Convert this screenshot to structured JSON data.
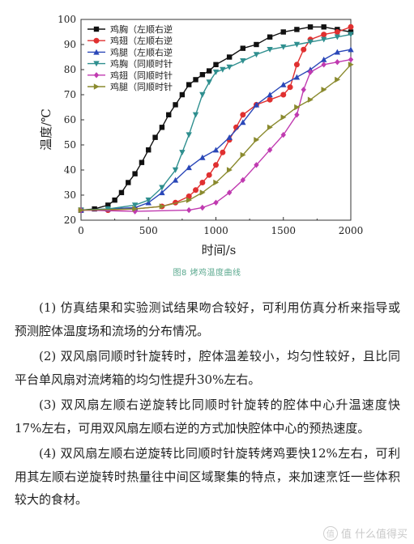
{
  "chart_data": {
    "type": "line",
    "xlabel": "时间/s",
    "ylabel": "温度/℃",
    "xlim": [
      0,
      2000
    ],
    "ylim": [
      20,
      100
    ],
    "xticks": [
      0,
      500,
      1000,
      1500,
      2000
    ],
    "yticks": [
      20,
      30,
      40,
      50,
      60,
      70,
      80,
      90,
      100
    ],
    "legend_position": "top-left",
    "grid": false,
    "series": [
      {
        "name": "鸡胸（左顺右逆",
        "color": "#111111",
        "marker": "square",
        "x": [
          0,
          100,
          200,
          250,
          300,
          350,
          400,
          450,
          500,
          550,
          600,
          650,
          700,
          750,
          800,
          850,
          900,
          950,
          1000,
          1100,
          1200,
          1300,
          1400,
          1500,
          1600,
          1700,
          1800,
          1900,
          2000
        ],
        "y": [
          24,
          24.5,
          26,
          28,
          31,
          35,
          38.5,
          43,
          48,
          53,
          57,
          62,
          66,
          70,
          74,
          76,
          78,
          79.5,
          82,
          85,
          88.5,
          90,
          93,
          95,
          96,
          97,
          97,
          96,
          95
        ]
      },
      {
        "name": "鸡翅（左顺右逆",
        "color": "#e03030",
        "marker": "circle",
        "x": [
          0,
          200,
          400,
          600,
          700,
          800,
          850,
          900,
          950,
          1000,
          1050,
          1100,
          1150,
          1200,
          1300,
          1400,
          1500,
          1550,
          1600,
          1650,
          1700,
          1800,
          1900,
          2000
        ],
        "y": [
          24,
          24,
          24.5,
          25.5,
          27,
          29.5,
          32,
          35,
          38,
          42,
          47,
          52,
          57,
          62,
          66,
          68,
          70,
          73,
          82,
          88,
          92,
          94,
          95,
          97
        ]
      },
      {
        "name": "鸡腿（左顺右逆",
        "color": "#2a47b8",
        "marker": "triangle",
        "x": [
          0,
          200,
          400,
          500,
          600,
          700,
          800,
          900,
          1000,
          1100,
          1200,
          1300,
          1400,
          1500,
          1600,
          1700,
          1800,
          1900,
          2000
        ],
        "y": [
          24,
          24.5,
          25,
          27,
          31,
          36,
          41,
          45,
          48,
          53,
          59,
          66,
          70,
          74,
          77,
          80,
          84,
          87,
          88
        ]
      },
      {
        "name": "鸡胸（同顺时针",
        "color": "#2f8f8f",
        "marker": "triangle-down",
        "x": [
          0,
          200,
          400,
          500,
          600,
          700,
          750,
          800,
          850,
          900,
          950,
          1000,
          1050,
          1100,
          1200,
          1300,
          1400,
          1500,
          1600,
          1700,
          1800,
          1900,
          2000
        ],
        "y": [
          24,
          24.5,
          26,
          28,
          33,
          40,
          47,
          54,
          62,
          70,
          75,
          79,
          80,
          81,
          83.5,
          86,
          88,
          89,
          90,
          91,
          92,
          93,
          94
        ]
      },
      {
        "name": "鸡翅（同顺时针",
        "color": "#c03ab0",
        "marker": "diamond",
        "x": [
          0,
          400,
          800,
          900,
          1000,
          1100,
          1200,
          1300,
          1400,
          1500,
          1600,
          1650,
          1700,
          1800,
          1900,
          2000
        ],
        "y": [
          24,
          23.5,
          24,
          25,
          27,
          31,
          36,
          42,
          48,
          54,
          62,
          72,
          79,
          82,
          83,
          84
        ]
      },
      {
        "name": "鸡腿（同顺时针",
        "color": "#8a8a2e",
        "marker": "triangle-right",
        "x": [
          0,
          400,
          600,
          800,
          900,
          1000,
          1100,
          1200,
          1300,
          1400,
          1500,
          1600,
          1700,
          1800,
          1900,
          2000
        ],
        "y": [
          24,
          24.5,
          25.5,
          28,
          31,
          35,
          40,
          46,
          52,
          57,
          61,
          65,
          68,
          72,
          76,
          82
        ]
      }
    ]
  },
  "caption": "图8 烤鸡温度曲线",
  "paragraphs": [
    "(1) 仿真结果和实验测试结果吻合较好，可利用仿真分析来指导或预测腔体温度场和流场的分布情况。",
    "(2) 双风扇同顺时针旋转时，腔体温差较小，均匀性较好，且比同平台单风扇对流烤箱的均匀性提升30%左右。",
    "(3) 双风扇左顺右逆旋转比同顺时针旋转的腔体中心升温速度快17%左右，可用双风扇左顺右逆的方式加快腔体中心的预热速度。",
    "(4) 双风扇左顺右逆旋转比同顺时针旋转烤鸡要快12%左右，可利用其左顺右逆旋转时热量往中间区域聚集的特点，来加速烹饪一些体积较大的食材。"
  ],
  "watermark": "值 什么值得买",
  "watermark_badge": "值"
}
